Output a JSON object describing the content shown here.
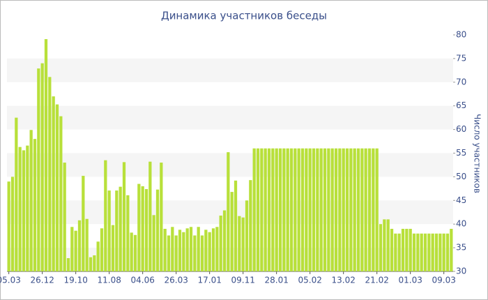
{
  "chart_data": {
    "type": "bar",
    "title": "Динамика участников беседы",
    "y_label": "Число участников",
    "categories": [
      "05.03",
      null,
      null,
      null,
      null,
      null,
      null,
      null,
      null,
      "26.12",
      null,
      null,
      null,
      null,
      null,
      null,
      null,
      null,
      "19.10",
      null,
      null,
      null,
      null,
      null,
      null,
      null,
      null,
      "11.08",
      null,
      null,
      null,
      null,
      null,
      null,
      null,
      null,
      "04.06",
      null,
      null,
      null,
      null,
      null,
      null,
      null,
      null,
      "26.03",
      null,
      null,
      null,
      null,
      null,
      null,
      null,
      null,
      "17.01",
      null,
      null,
      null,
      null,
      null,
      null,
      null,
      null,
      "09.11",
      null,
      null,
      null,
      null,
      null,
      null,
      null,
      null,
      "28.01",
      null,
      null,
      null,
      null,
      null,
      null,
      null,
      null,
      "05.02",
      null,
      null,
      null,
      null,
      null,
      null,
      null,
      null,
      "13.02",
      null,
      null,
      null,
      null,
      null,
      null,
      null,
      null,
      "21.02",
      null,
      null,
      null,
      null,
      null,
      null,
      null,
      null,
      "01.03",
      null,
      null,
      null,
      null,
      null,
      null,
      null,
      null,
      "09.03",
      null,
      null
    ],
    "values": [
      49,
      50,
      62.5,
      56.3,
      55.6,
      56.6,
      59.9,
      58,
      72.9,
      74,
      79.1,
      71.1,
      67,
      65.3,
      62.8,
      53,
      32.8,
      39.4,
      38.6,
      40.8,
      50.2,
      41.1,
      33,
      33.4,
      36.3,
      39.1,
      53.5,
      47.1,
      39.8,
      47.1,
      47.9,
      53.1,
      46.1,
      38.2,
      37.7,
      48.5,
      48,
      47.4,
      53.2,
      41.9,
      47.3,
      53,
      39,
      37.6,
      39.4,
      37.6,
      38.8,
      38.3,
      39.1,
      39.4,
      37.6,
      39.4,
      37.6,
      38.8,
      38.3,
      39.1,
      39.4,
      41.8,
      42.9,
      55.2,
      46.8,
      49.2,
      41.7,
      41.4,
      45,
      49.3,
      56,
      56,
      56,
      56,
      56,
      56,
      56,
      56,
      56,
      56,
      56,
      56,
      56,
      56,
      56,
      56,
      56,
      56,
      56,
      56,
      56,
      56,
      56,
      56,
      56,
      56,
      56,
      56,
      56,
      56,
      56,
      56,
      56,
      56,
      40,
      41,
      41,
      39,
      38,
      38,
      39,
      39,
      39,
      38,
      38,
      38,
      38,
      38,
      38,
      38,
      38,
      38,
      38,
      39
    ],
    "color": "#b8e03a",
    "ylim": [
      30,
      80
    ],
    "yticks": [
      30,
      35,
      40,
      45,
      50,
      55,
      60,
      65,
      70,
      75,
      80
    ],
    "grid": true
  }
}
